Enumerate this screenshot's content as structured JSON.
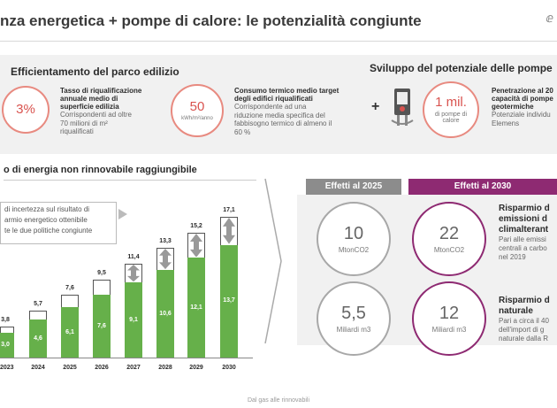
{
  "header": {
    "title": "nza energetica + pompe di calore: le potenzialità congiunte",
    "logo_text": "ⅇ"
  },
  "top": {
    "left_heading": "Efficientamento del parco edilizio",
    "ring1": {
      "value": "3%"
    },
    "item1": {
      "bold": [
        "Tasso di riqualificazione",
        "annuale medio di",
        "superficie edilizia"
      ],
      "text": [
        "Corrispondenti ad oltre",
        "70 milioni di m²",
        "riqualificati"
      ]
    },
    "ring2": {
      "value": "50",
      "unit": "kWh/m²/anno"
    },
    "item2": {
      "bold": [
        "Consumo termico medio target",
        "degli edifici riqualificati"
      ],
      "text": [
        "Corrispondente ad una",
        "riduzione media specifica del",
        "fabbisogno termico di almeno il",
        "60 %"
      ]
    },
    "right_heading": "Sviluppo del potenziale delle pompe",
    "plus": "+",
    "ring3": {
      "value": "1 mil.",
      "unit": "di pompe di calore"
    },
    "item3": {
      "bold": [
        "Penetrazione al 20",
        "capacità di pompe",
        "geotermiche"
      ],
      "text": [
        "Potenziale individu",
        "Elemens"
      ]
    }
  },
  "chart": {
    "title": "o di energia non rinnovabile raggiungibile",
    "callout": [
      "di incertezza sul risultato di",
      "armio energetico ottenibile",
      "te le due politiche congiunte"
    ]
  },
  "chart_data": {
    "type": "bar",
    "categories": [
      "2023",
      "2024",
      "2025",
      "2026",
      "2027",
      "2028",
      "2029",
      "2030"
    ],
    "series": [
      {
        "values": [
          3.0,
          4.6,
          6.1,
          7.6,
          9.1,
          10.6,
          12.1,
          13.7
        ]
      }
    ],
    "totals": [
      3.8,
      5.7,
      7.6,
      9.5,
      11.4,
      13.3,
      15.2,
      17.1
    ],
    "value_labels": [
      "3,0",
      "4,6",
      "6,1",
      "7,6",
      "9,1",
      "10,6",
      "12,1",
      "13,7"
    ],
    "total_labels": [
      "3,8",
      "5,7",
      "7,6",
      "9,5",
      "11,4",
      "13,3",
      "15,2",
      "17,1"
    ],
    "title": "",
    "xlabel": "",
    "ylabel": "",
    "ylim": [
      0,
      18
    ],
    "grid": false,
    "colors": {
      "base": "#66b04a",
      "uncertainty": "#ffffff",
      "arrow": "#999999"
    }
  },
  "effects": {
    "tab_2025": "Effetti al 2025",
    "tab_2030": "Effetti al 2030",
    "c1": {
      "value": "10",
      "unit": "MtonCO2"
    },
    "c2": {
      "value": "22",
      "unit": "MtonCO2"
    },
    "c3": {
      "value": "5,5",
      "unit": "Miliardi m3"
    },
    "c4": {
      "value": "12",
      "unit": "Miliardi m3"
    },
    "r1_heading": [
      "Risparmio d",
      "emissioni d",
      "climalterant"
    ],
    "r1_text": [
      "Pari alle emissi",
      "centrali a carbo",
      "nel 2019"
    ],
    "r2_heading": [
      "Risparmio d",
      "naturale"
    ],
    "r2_text": [
      "Pari a circa il 40",
      "dell'import di g",
      "naturale dalla R"
    ]
  },
  "footer": {
    "text": "Dal gas alle rinnovabili"
  },
  "colors": {
    "accent_red": "#d9534f",
    "purple": "#8e2a72",
    "green": "#66b04a",
    "grey": "#8c8c8c"
  }
}
